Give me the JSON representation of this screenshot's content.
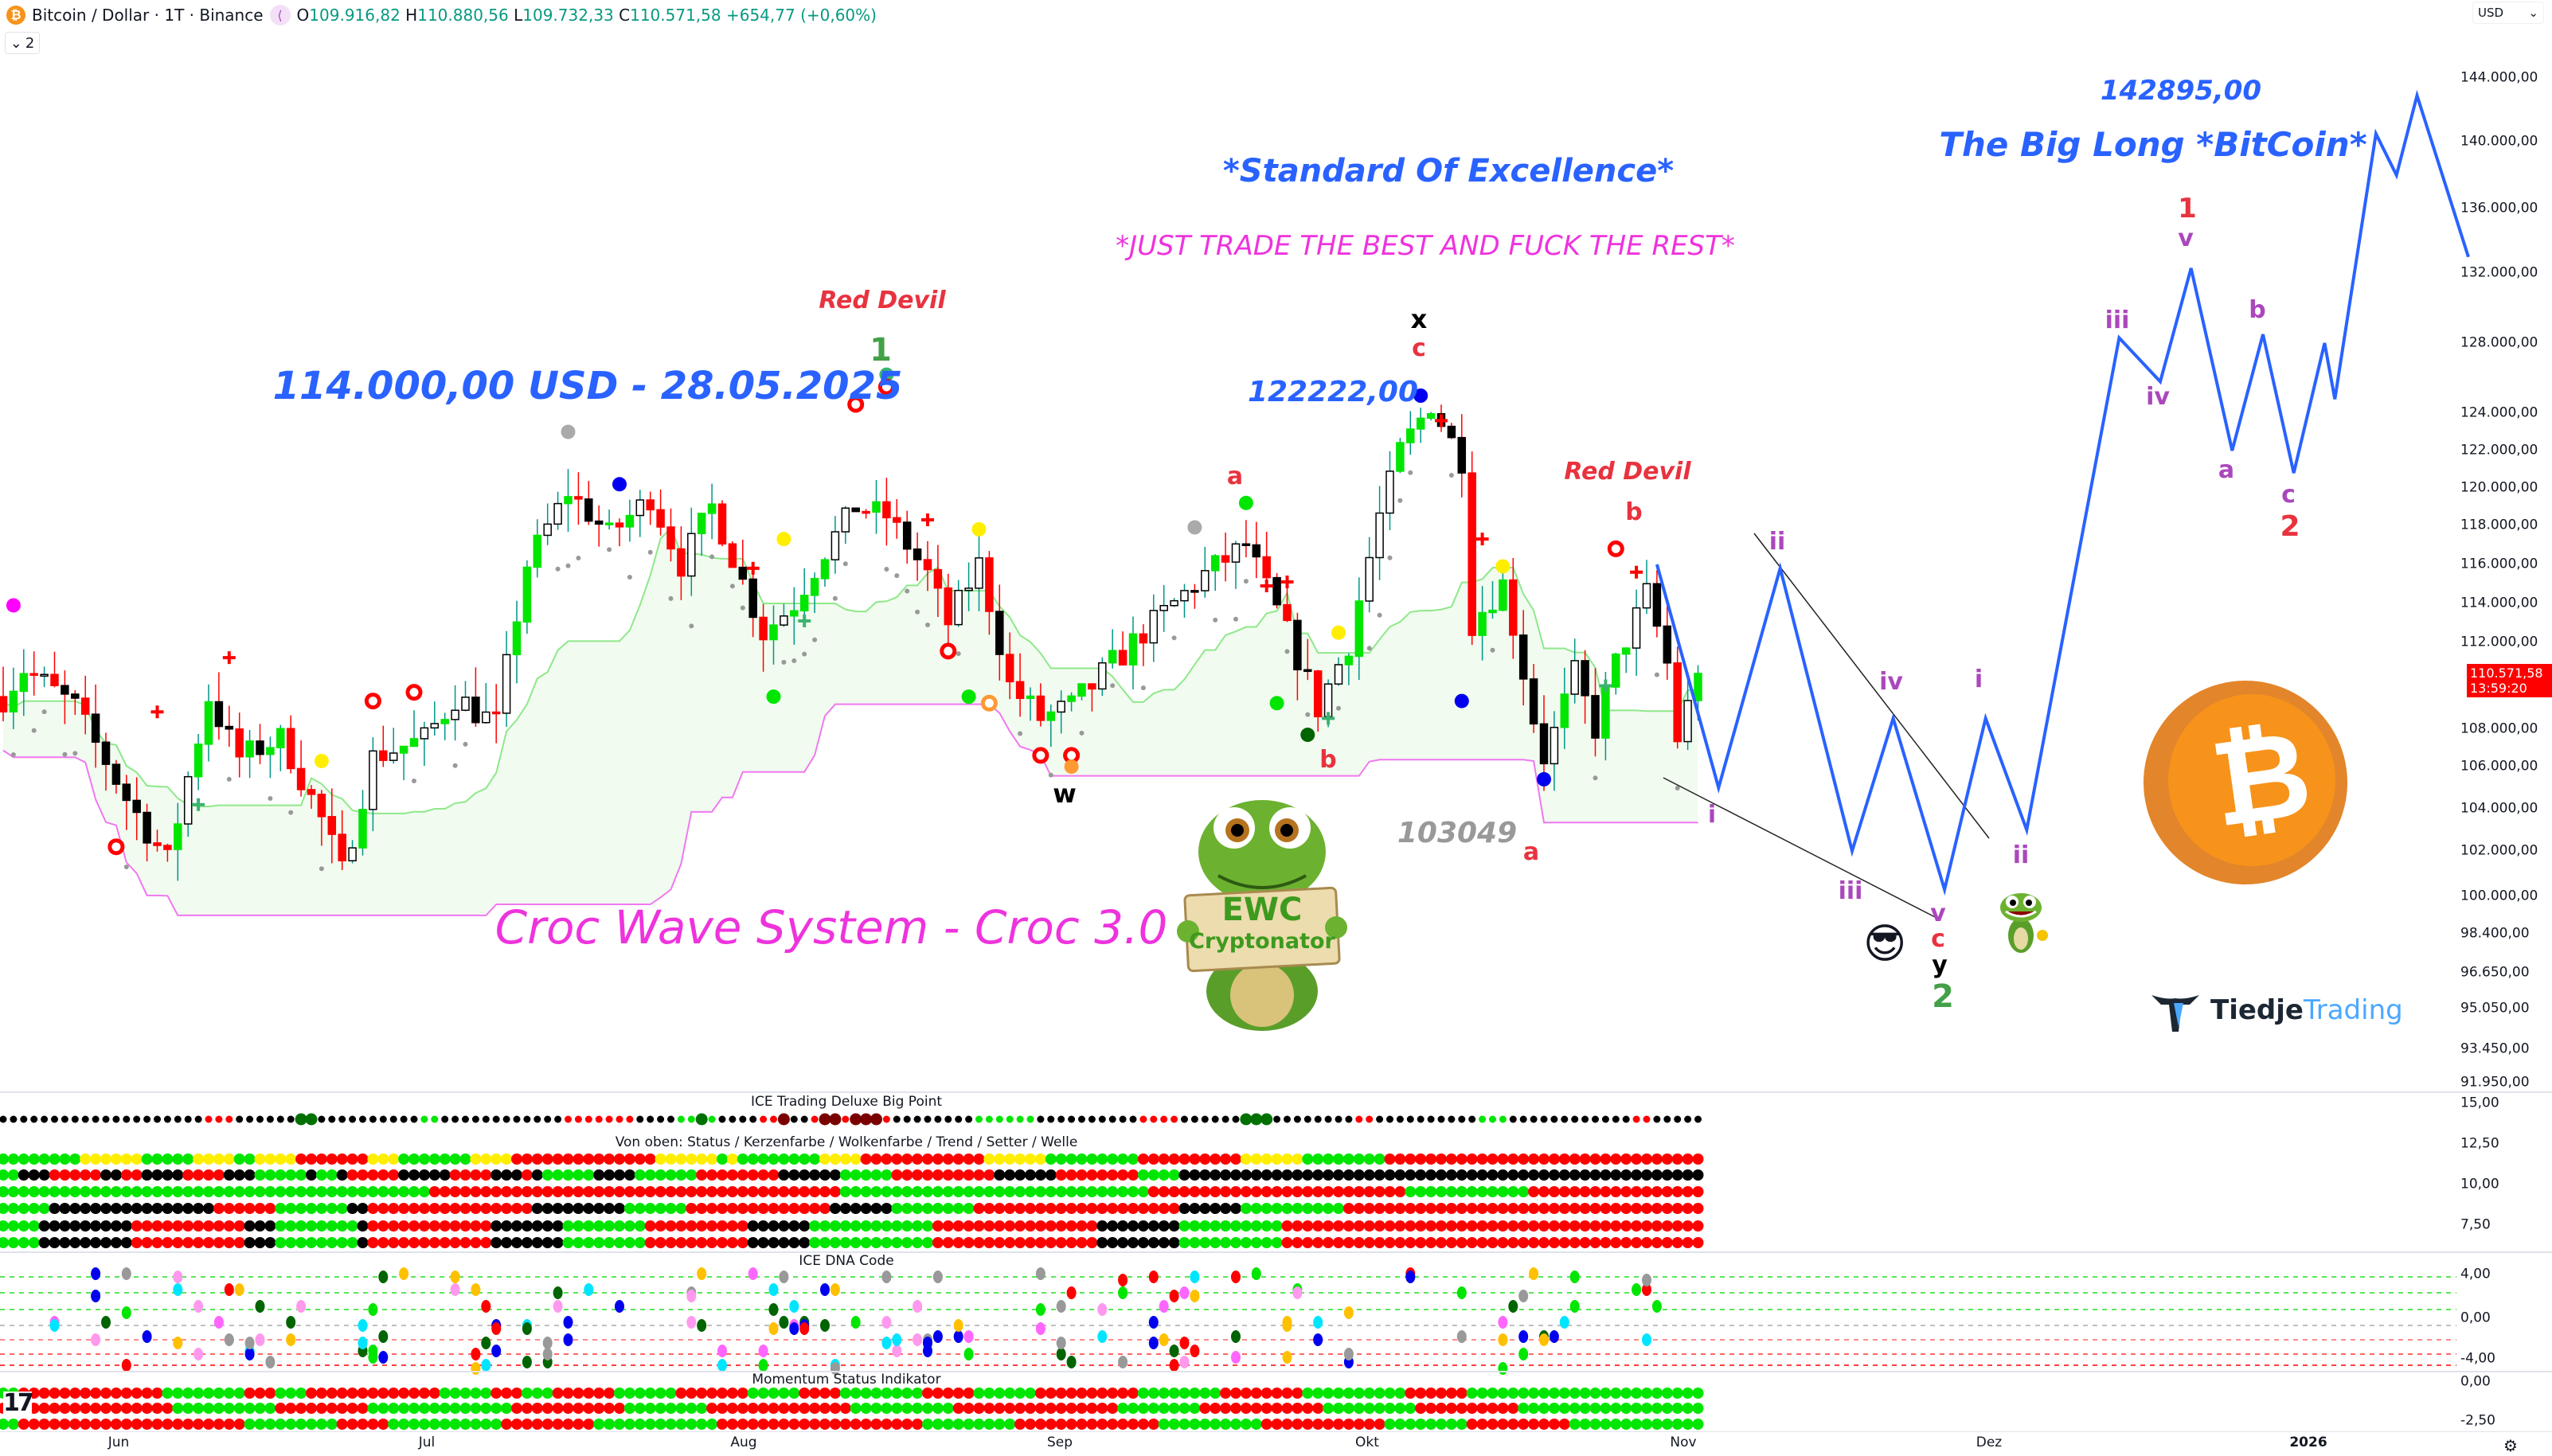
{
  "header": {
    "symbol": "Bitcoin / Dollar · 1T · Binance",
    "open_label": "O",
    "open": "109.916,82",
    "high_label": "H",
    "high": "110.880,56",
    "low_label": "L",
    "low": "109.732,33",
    "close_label": "C",
    "close": "110.571,58",
    "change": "+654,77 (+0,60%)",
    "legend_count": "2",
    "currency": "USD",
    "icons": {
      "symbol": "bitcoin-icon",
      "share": "share-icon",
      "toggle": "chevron-down-icon",
      "settings": "gear-icon"
    }
  },
  "price_axis": {
    "ticks": [
      "144.000,00",
      "140.000,00",
      "136.000,00",
      "132.000,00",
      "128.000,00",
      "124.000,00",
      "122.000,00",
      "120.000,00",
      "118.000,00",
      "116.000,00",
      "114.000,00",
      "112.000,00",
      "108.000,00",
      "106.000,00",
      "104.000,00",
      "102.000,00",
      "100.000,00",
      "98.400,00",
      "96.650,00",
      "95.050,00",
      "93.450,00",
      "91.950,00"
    ],
    "current_price": "110.571,58",
    "countdown": "13:59:20",
    "current_color": "#ff0000"
  },
  "time_axis": [
    "Jun",
    "Jul",
    "Aug",
    "Sep",
    "Okt",
    "Nov",
    "Dez",
    "2026"
  ],
  "price_history": [
    [
      "2025-05-20",
      109500
    ],
    [
      "2025-05-22",
      110800
    ],
    [
      "2025-05-27",
      109000
    ],
    [
      "2025-06-01",
      104500
    ],
    [
      "2025-06-05",
      101500
    ],
    [
      "2025-06-09",
      109500
    ],
    [
      "2025-06-12",
      106500
    ],
    [
      "2025-06-16",
      107500
    ],
    [
      "2025-06-20",
      103500
    ],
    [
      "2025-06-22",
      101000
    ],
    [
      "2025-06-25",
      106500
    ],
    [
      "2025-06-30",
      107500
    ],
    [
      "2025-07-03",
      109500
    ],
    [
      "2025-07-07",
      108200
    ],
    [
      "2025-07-10",
      116000
    ],
    [
      "2025-07-14",
      119800
    ],
    [
      "2025-07-18",
      117500
    ],
    [
      "2025-07-22",
      119500
    ],
    [
      "2025-07-25",
      116000
    ],
    [
      "2025-07-28",
      119000
    ],
    [
      "2025-08-02",
      112500
    ],
    [
      "2025-08-05",
      114000
    ],
    [
      "2025-08-08",
      116700
    ],
    [
      "2025-08-11",
      119000
    ],
    [
      "2025-08-14",
      118500
    ],
    [
      "2025-08-18",
      115500
    ],
    [
      "2025-08-20",
      113000
    ],
    [
      "2025-08-23",
      116000
    ],
    [
      "2025-08-26",
      110000
    ],
    [
      "2025-08-29",
      108500
    ],
    [
      "2025-09-01",
      109000
    ],
    [
      "2025-09-05",
      111000
    ],
    [
      "2025-09-10",
      113500
    ],
    [
      "2025-09-14",
      115500
    ],
    [
      "2025-09-18",
      117000
    ],
    [
      "2025-09-22",
      112500
    ],
    [
      "2025-09-25",
      109000
    ],
    [
      "2025-09-28",
      112000
    ],
    [
      "2025-10-01",
      118500
    ],
    [
      "2025-10-03",
      122000
    ],
    [
      "2025-10-06",
      124500
    ],
    [
      "2025-10-09",
      121500
    ],
    [
      "2025-10-10",
      113000
    ],
    [
      "2025-10-13",
      115000
    ],
    [
      "2025-10-16",
      108500
    ],
    [
      "2025-10-17",
      106500
    ],
    [
      "2025-10-20",
      110500
    ],
    [
      "2025-10-22",
      108000
    ],
    [
      "2025-10-24",
      111000
    ],
    [
      "2025-10-27",
      114500
    ],
    [
      "2025-10-29",
      111000
    ],
    [
      "2025-10-30",
      107500
    ],
    [
      "2025-11-01",
      110571.58
    ]
  ],
  "projection": {
    "color": "#2962ff",
    "points": [
      [
        "2025-10-28",
        116000
      ],
      [
        "2025-11-03",
        105000
      ],
      [
        "2025-11-09",
        115800
      ],
      [
        "2025-11-16",
        102000
      ],
      [
        "2025-11-20",
        108500
      ],
      [
        "2025-11-25",
        100300
      ],
      [
        "2025-11-29",
        108500
      ],
      [
        "2025-12-03",
        103000
      ],
      [
        "2025-12-12",
        128300
      ],
      [
        "2025-12-16",
        125800
      ],
      [
        "2025-12-19",
        132300
      ],
      [
        "2025-12-23",
        122000
      ],
      [
        "2025-12-26",
        128500
      ],
      [
        "2025-12-29",
        120800
      ],
      [
        "2026-01-01",
        128000
      ],
      [
        "2026-01-02",
        124800
      ],
      [
        "2026-01-06",
        140500
      ],
      [
        "2026-01-08",
        138000
      ],
      [
        "2026-01-10",
        142900
      ],
      [
        "2026-01-15",
        133000
      ]
    ]
  },
  "markers": [
    {
      "date": "2025-05-21",
      "price": 113900,
      "type": "dot",
      "color": "#ff00ff"
    },
    {
      "date": "2025-05-31",
      "price": 102200,
      "type": "ring",
      "color": "#ff0000"
    },
    {
      "date": "2025-06-04",
      "price": 108800,
      "type": "plus",
      "color": "#ff0000"
    },
    {
      "date": "2025-06-08",
      "price": 104200,
      "type": "plus",
      "color": "#3cb371"
    },
    {
      "date": "2025-06-11",
      "price": 111300,
      "type": "plus",
      "color": "#ff0000"
    },
    {
      "date": "2025-06-20",
      "price": 106300,
      "type": "dot",
      "color": "#ffee00"
    },
    {
      "date": "2025-06-25",
      "price": 109300,
      "type": "ring",
      "color": "#ff0000"
    },
    {
      "date": "2025-06-29",
      "price": 109700,
      "type": "ring",
      "color": "#ff0000"
    },
    {
      "date": "2025-07-14",
      "price": 123000,
      "type": "dot",
      "color": "#aaaaaa"
    },
    {
      "date": "2025-07-19",
      "price": 120200,
      "type": "dot",
      "color": "#0000ee"
    },
    {
      "date": "2025-08-01",
      "price": 115800,
      "type": "plus",
      "color": "#ff0000"
    },
    {
      "date": "2025-08-03",
      "price": 109500,
      "type": "dot",
      "color": "#00e600"
    },
    {
      "date": "2025-08-04",
      "price": 117300,
      "type": "dot",
      "color": "#ffee00"
    },
    {
      "date": "2025-08-06",
      "price": 113100,
      "type": "plus",
      "color": "#3cb371"
    },
    {
      "date": "2025-08-11",
      "price": 124500,
      "type": "ring",
      "color": "#ff0000"
    },
    {
      "date": "2025-08-14",
      "price": 126200,
      "type": "dot",
      "color": "#3cb371"
    },
    {
      "date": "2025-08-14",
      "price": 125500,
      "type": "ring",
      "color": "#ff0000"
    },
    {
      "date": "2025-08-18",
      "price": 118300,
      "type": "plus",
      "color": "#ff0000"
    },
    {
      "date": "2025-08-20",
      "price": 111600,
      "type": "ring",
      "color": "#ff0000"
    },
    {
      "date": "2025-08-22",
      "price": 109500,
      "type": "dot",
      "color": "#00e600"
    },
    {
      "date": "2025-08-23",
      "price": 117800,
      "type": "dot",
      "color": "#ffee00"
    },
    {
      "date": "2025-08-24",
      "price": 109200,
      "type": "ring",
      "color": "#ff9933"
    },
    {
      "date": "2025-08-29",
      "price": 106600,
      "type": "ring",
      "color": "#ff0000"
    },
    {
      "date": "2025-09-01",
      "price": 106600,
      "type": "ring",
      "color": "#ff0000"
    },
    {
      "date": "2025-09-01",
      "price": 106000,
      "type": "dot",
      "color": "#ff9933"
    },
    {
      "date": "2025-09-13",
      "price": 117900,
      "type": "dot",
      "color": "#aaaaaa"
    },
    {
      "date": "2025-09-18",
      "price": 119200,
      "type": "dot",
      "color": "#00e600"
    },
    {
      "date": "2025-09-20",
      "price": 114900,
      "type": "plus",
      "color": "#ff0000"
    },
    {
      "date": "2025-09-21",
      "price": 109200,
      "type": "dot",
      "color": "#00e600"
    },
    {
      "date": "2025-09-22",
      "price": 115100,
      "type": "plus",
      "color": "#ff0000"
    },
    {
      "date": "2025-09-24",
      "price": 107700,
      "type": "dot",
      "color": "#006400"
    },
    {
      "date": "2025-09-26",
      "price": 108500,
      "type": "plus",
      "color": "#3cb371"
    },
    {
      "date": "2025-09-27",
      "price": 112500,
      "type": "dot",
      "color": "#ffee00"
    },
    {
      "date": "2025-10-05",
      "price": 125000,
      "type": "dot",
      "color": "#0000ee"
    },
    {
      "date": "2025-10-07",
      "price": 123600,
      "type": "plus",
      "color": "#ff0000"
    },
    {
      "date": "2025-10-09",
      "price": 109300,
      "type": "dot",
      "color": "#0000ee"
    },
    {
      "date": "2025-10-11",
      "price": 117300,
      "type": "plus",
      "color": "#ff0000"
    },
    {
      "date": "2025-10-13",
      "price": 115900,
      "type": "dot",
      "color": "#ffee00"
    },
    {
      "date": "2025-10-17",
      "price": 105400,
      "type": "dot",
      "color": "#0000ee"
    },
    {
      "date": "2025-10-23",
      "price": 110000,
      "type": "plus",
      "color": "#3cb371"
    },
    {
      "date": "2025-10-24",
      "price": 116800,
      "type": "ring",
      "color": "#ff0000"
    },
    {
      "date": "2025-10-26",
      "price": 115600,
      "type": "plus",
      "color": "#ff0000"
    }
  ],
  "annotations": {
    "red_devil_1": "Red Devil",
    "wave_1": "1",
    "target_text": "114.000,00 USD - 28.05.2025",
    "standard": "*Standard Of Excellence*",
    "slogan": "*JUST TRADE THE BEST AND FUCK THE REST*",
    "x_label": "x",
    "c_label": "c",
    "high_value": "122222,00",
    "red_devil_2": "Red Devil",
    "b_label_top": "b",
    "a_label_top": "a",
    "b_label_low": "b",
    "w_label": "w",
    "low_value": "103049",
    "a_label_low": "a",
    "system_title": "Croc Wave System - Croc 3.0",
    "croc_sign_1": "EWC",
    "croc_sign_2": "Cryptonator",
    "target_price": "142895,00",
    "big_long": "The Big Long *BitCoin*",
    "brand_1": "Tiedje",
    "brand_2": "Trading",
    "colors": {
      "blue": "#2962ff",
      "red": "#e8333f",
      "magenta": "#ee33dd",
      "green": "#43a047",
      "purple": "#ab47bc"
    }
  },
  "wave_labels": {
    "p_i": "i",
    "p_ii": "ii",
    "p_iii": "iii",
    "p_iv": "iv",
    "p_v": "v",
    "p_c": "c",
    "p_y": "y",
    "p_2": "2",
    "q_i": "i",
    "q_ii": "ii",
    "q_iii": "iii",
    "q_iv": "iv",
    "q_v": "v",
    "q_1": "1",
    "q_a": "a",
    "q_b": "b",
    "q_c": "c",
    "q_2": "2"
  },
  "panels": {
    "big_point_title": "ICE Trading Deluxe Big Point",
    "rows_title": "Von oben: Status / Kerzenfarbe / Wolkenfarbe / Trend / Setter / Welle",
    "rows_scale": [
      "15,00",
      "12,50",
      "10,00",
      "7,50"
    ],
    "dna_title": "ICE DNA Code",
    "dna_scale": [
      "4,00",
      "0,00",
      "-4,00"
    ],
    "momentum_title": "Momentum Status Indikator",
    "momentum_scale": [
      "0,00",
      "-2,50"
    ],
    "palette": {
      "G": "#00e600",
      "Y": "#ffee00",
      "R": "#ff0000",
      "K": "#000000",
      "D": "#007000",
      "M": "#7a0000"
    },
    "big_point_row": "K20 R3 K6 D2 K10 G2 K12 R7 K4 G2 D1 G1 K4 R2 M1 K2 R1 M2 R1 M3 R1 K8 G6 K10 R4 K6 D3 K8 R2 K10 G3 K12 R2 K10",
    "status_rows": [
      "G8 Y6 G5 Y4 G2 Y4 R7 Y3 G7 Y4 R14 Y6 G1 Y1 G8 Y4 R12 Y6 G9 R10 Y6 G8 R12",
      "G2 K3 R5 K2 R2 K4 R4 K3 G5 K1 G2 K1 R5 K5 R4 K3 R1 K1 G5 K4 G6 R8 K6 G5 R10 K6 R8 G4 K4",
      "G42 R40 G30 R25 G12 R20",
      "G5 K16 R6 G7 K2 R16 K9 G6 R14 K6 G8 R20 K6 G10 R14",
      "G4 K9 R11 K3 G8 K1 R12 K7 G8 R10 K6 G12 R16 K8 G10 R20"
    ],
    "momentum_rows": [
      "G2 R14 G8 R3 G3 R13 G5 R3 G3 R6 G6 R7 G5 R4 G8 R5 G6 R10 G8 R8 G10 R6 G8",
      "R17 G10 R9 G14 R11 G8 R14 G10 R16 G8 R12 G9 R10 G8",
      "G2 R22 G9 R5 G11 R9 G12 R20 G9 R14 G10 R12 G8 R10 G8"
    ]
  }
}
